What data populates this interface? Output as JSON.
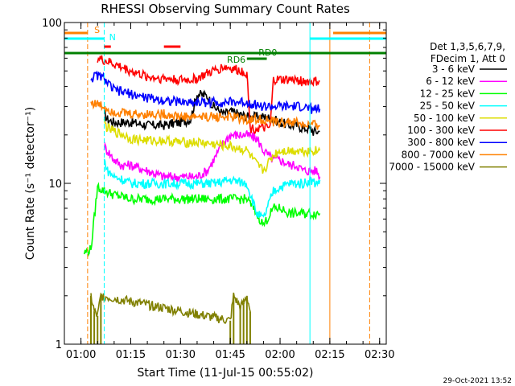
{
  "chart_data": {
    "type": "line",
    "title": "RHESSI Observing Summary Count Rates",
    "xlabel": "Start Time (11-Jul-15 00:55:02)",
    "ylabel": "Count Rate (s⁻¹ detector⁻¹)",
    "y_scale": "log",
    "ylim": [
      1,
      100
    ],
    "xlim_minutes_after_start": [
      0,
      97
    ],
    "y_tick_labels": [
      "100",
      "10",
      "1"
    ],
    "x_tick_labels": [
      "01:00",
      "01:15",
      "01:30",
      "01:45",
      "02:00",
      "02:15",
      "02:30"
    ],
    "legend_header": [
      "Det 1,3,5,6,7,9,",
      "FDecim 1, Att 0"
    ],
    "legend_position": "right",
    "timestamp": "29-Oct-2021 13:52",
    "series": [
      {
        "name": "3 - 6 keV",
        "color": "#000000",
        "x": [
          12,
          13,
          15,
          20,
          25,
          30,
          35,
          38,
          40,
          43,
          45,
          48,
          50,
          55,
          60,
          63,
          65,
          68,
          70,
          72,
          73,
          74,
          75,
          76,
          77
        ],
        "y": [
          27,
          25,
          24,
          24,
          23,
          23,
          24,
          25,
          36,
          35,
          30,
          27,
          28,
          26,
          26,
          25,
          24,
          23,
          23,
          22,
          22,
          22,
          21,
          21,
          21
        ]
      },
      {
        "name": "6 - 12 keV",
        "color": "#ff00ff",
        "x": [
          12,
          13,
          15,
          17,
          20,
          25,
          30,
          35,
          38,
          40,
          43,
          45,
          48,
          50,
          55,
          58,
          60,
          63,
          65,
          68,
          70,
          72,
          74,
          76,
          77
        ],
        "y": [
          17,
          16,
          14,
          13,
          13,
          12,
          11,
          11,
          11,
          11,
          12,
          14,
          18,
          20,
          20,
          19,
          16,
          14,
          14,
          13,
          13,
          12,
          12,
          12,
          11
        ]
      },
      {
        "name": "12 - 25 keV",
        "color": "#00ff00",
        "x": [
          6,
          7,
          8,
          10,
          12,
          15,
          20,
          25,
          30,
          35,
          40,
          45,
          50,
          55,
          58,
          60,
          63,
          65,
          68,
          70,
          72,
          74,
          76,
          77
        ],
        "y": [
          3.7,
          3.8,
          3.9,
          9.5,
          9,
          8.5,
          8,
          8,
          8,
          8,
          8,
          8,
          8,
          8,
          6.5,
          5.5,
          7,
          7,
          6.5,
          6.5,
          6.5,
          6.5,
          6.5,
          6.5
        ]
      },
      {
        "name": "25 - 50 keV",
        "color": "#00ffff",
        "x": [
          12,
          13,
          15,
          18,
          20,
          25,
          30,
          35,
          40,
          45,
          50,
          55,
          58,
          60,
          63,
          65,
          68,
          70,
          72,
          74,
          76,
          77
        ],
        "y": [
          14,
          12,
          11,
          10.5,
          10,
          10,
          10,
          10,
          10,
          10,
          10.5,
          10,
          6.5,
          6,
          9,
          9.5,
          10,
          10,
          10,
          10.5,
          10,
          10.5
        ]
      },
      {
        "name": "50 - 100 keV",
        "color": "#dddd00",
        "x": [
          12,
          13,
          15,
          18,
          20,
          25,
          30,
          35,
          40,
          45,
          50,
          55,
          58,
          60,
          63,
          65,
          68,
          70,
          72,
          74,
          76,
          77
        ],
        "y": [
          24,
          22,
          21,
          20,
          19,
          18.5,
          18.5,
          18,
          18,
          17.5,
          17,
          16,
          13,
          12,
          15,
          16,
          16,
          16,
          16,
          16,
          16,
          16
        ]
      },
      {
        "name": "100 - 300 keV",
        "color": "#ff0000",
        "x": [
          10,
          12,
          13,
          15,
          20,
          25,
          30,
          35,
          38,
          40,
          43,
          45,
          48,
          50,
          55,
          56,
          57,
          58,
          60,
          62,
          63,
          64,
          65,
          68,
          70,
          72,
          74,
          76,
          77
        ],
        "y": [
          60,
          58,
          57,
          55,
          50,
          46,
          45,
          44,
          44,
          45,
          48,
          50,
          53,
          52,
          49,
          22,
          22,
          22,
          22,
          22,
          44,
          44,
          44,
          44,
          44,
          43,
          43,
          43,
          43
        ]
      },
      {
        "name": "300 - 800 keV",
        "color": "#0000ff",
        "x": [
          8,
          10,
          12,
          13,
          15,
          20,
          25,
          30,
          35,
          40,
          45,
          50,
          55,
          60,
          63,
          65,
          68,
          70,
          72,
          74,
          76,
          77
        ],
        "y": [
          45,
          47,
          45,
          42,
          38,
          36,
          34,
          33,
          32,
          32,
          32,
          32,
          32,
          30,
          30,
          30,
          30,
          30,
          30,
          29,
          29,
          29
        ]
      },
      {
        "name": "800 - 7000 keV",
        "color": "#ff8000",
        "x": [
          8,
          10,
          12,
          13,
          15,
          20,
          25,
          30,
          35,
          40,
          45,
          50,
          55,
          60,
          63,
          65,
          68,
          70,
          72,
          74,
          76,
          77
        ],
        "y": [
          32,
          31,
          30,
          29,
          28,
          27,
          27,
          27,
          26,
          26,
          26,
          26,
          25,
          25,
          24,
          24,
          24,
          24,
          23,
          23,
          23,
          23
        ]
      },
      {
        "name": "7000 - 15000 keV",
        "color": "#808000",
        "x": [
          8,
          9,
          10,
          11,
          50,
          51,
          53,
          54,
          55,
          56
        ],
        "y": [
          2,
          1.6,
          1.5,
          2,
          1.4,
          2,
          1.7,
          1.8,
          2,
          1.6
        ]
      }
    ],
    "annotations": [
      {
        "text": "S",
        "color": "#ff8000"
      },
      {
        "text": "N",
        "color": "#00ffff"
      },
      {
        "text": "RD6",
        "color": "#008000"
      },
      {
        "text": "RD0",
        "color": "#008000"
      }
    ]
  }
}
